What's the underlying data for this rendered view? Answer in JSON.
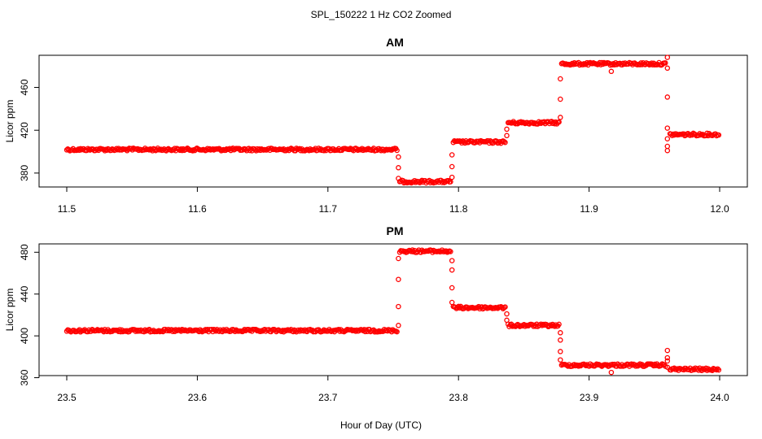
{
  "figure": {
    "title": "SPL_150222  1 Hz CO2 Zoomed",
    "xlabel": "Hour of Day (UTC)"
  },
  "chart_data": [
    {
      "type": "scatter",
      "title": "AM",
      "ylabel": "Licor ppm",
      "xlim": [
        11.5,
        12.0
      ],
      "ylim": [
        367,
        490
      ],
      "xticks": [
        "11.5",
        "11.6",
        "11.7",
        "11.8",
        "11.9",
        "12.0"
      ],
      "yticks": [
        "380",
        "420",
        "460"
      ],
      "grid": false,
      "legend": false,
      "color": "#ff0000",
      "series": [
        {
          "segments": [
            {
              "x0": 11.5,
              "x1": 11.753,
              "y": 402
            },
            {
              "x0": 11.755,
              "x1": 11.794,
              "y": 372
            },
            {
              "x0": 11.796,
              "x1": 11.836,
              "y": 409
            },
            {
              "x0": 11.838,
              "x1": 11.877,
              "y": 427
            },
            {
              "x0": 11.879,
              "x1": 11.959,
              "y": 482
            },
            {
              "x0": 11.962,
              "x1": 12.0,
              "y": 416
            }
          ],
          "transitions": [
            {
              "x": 11.754,
              "y": [
                395,
                385,
                375
              ]
            },
            {
              "x": 11.795,
              "y": [
                376,
                386,
                397
              ]
            },
            {
              "x": 11.837,
              "y": [
                415,
                421
              ]
            },
            {
              "x": 11.878,
              "y": [
                432,
                449,
                468
              ]
            },
            {
              "x": 11.917,
              "y": [
                475
              ]
            },
            {
              "x": 11.96,
              "y": [
                488,
                478,
                451,
                422,
                412,
                405,
                401
              ]
            }
          ]
        }
      ]
    },
    {
      "type": "scatter",
      "title": "PM",
      "ylabel": "Licor ppm",
      "xlim": [
        23.5,
        24.0
      ],
      "ylim": [
        362,
        488
      ],
      "xticks": [
        "23.5",
        "23.6",
        "23.7",
        "23.8",
        "23.9",
        "24.0"
      ],
      "yticks": [
        "360",
        "400",
        "440",
        "480"
      ],
      "grid": false,
      "legend": false,
      "color": "#ff0000",
      "series": [
        {
          "segments": [
            {
              "x0": 23.5,
              "x1": 23.753,
              "y": 405
            },
            {
              "x0": 23.755,
              "x1": 23.794,
              "y": 481
            },
            {
              "x0": 23.796,
              "x1": 23.836,
              "y": 427
            },
            {
              "x0": 23.838,
              "x1": 23.877,
              "y": 410
            },
            {
              "x0": 23.879,
              "x1": 23.959,
              "y": 372
            },
            {
              "x0": 23.962,
              "x1": 24.0,
              "y": 368
            }
          ],
          "transitions": [
            {
              "x": 23.754,
              "y": [
                410,
                428,
                454,
                474
              ]
            },
            {
              "x": 23.795,
              "y": [
                472,
                463,
                446,
                432
              ]
            },
            {
              "x": 23.837,
              "y": [
                421,
                415
              ]
            },
            {
              "x": 23.878,
              "y": [
                403,
                396,
                385,
                377
              ]
            },
            {
              "x": 23.917,
              "y": [
                365
              ]
            },
            {
              "x": 23.96,
              "y": [
                386,
                379,
                376,
                370
              ]
            }
          ]
        }
      ]
    }
  ]
}
